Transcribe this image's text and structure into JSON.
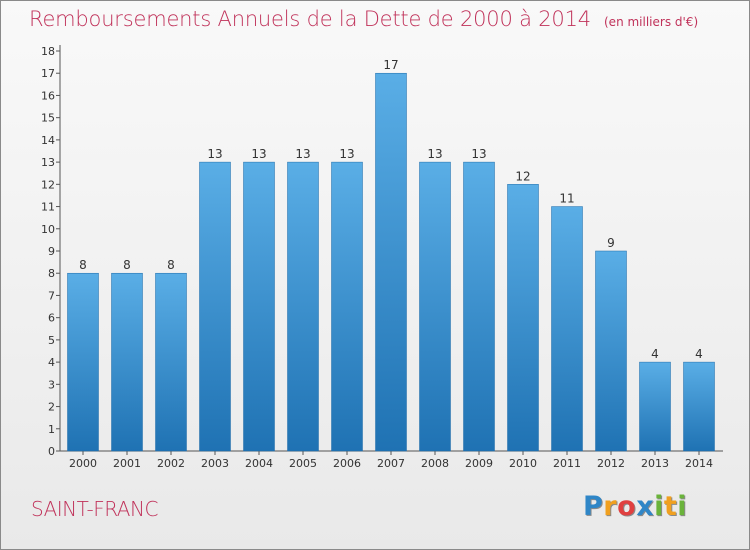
{
  "title": "Remboursements Annuels de la Dette de 2000 à 2014",
  "subtitle": "(en milliers d'€)",
  "commune": "SAINT-FRANC",
  "logo": {
    "letters": [
      "P",
      "r",
      "o",
      "x",
      "i",
      "t",
      "i"
    ],
    "colors": [
      "#2f86c7",
      "#f0a020",
      "#e04040",
      "#2f86c7",
      "#6ab33a",
      "#f0a020",
      "#6ab33a"
    ]
  },
  "colors": {
    "accent": "#c0325a",
    "bar_light": "#5aaee6",
    "bar_dark": "#1f72b3",
    "text": "#333333"
  },
  "chart_data": {
    "type": "bar",
    "title": "Remboursements Annuels de la Dette de 2000 à 2014",
    "subtitle": "(en milliers d'€)",
    "categories": [
      "2000",
      "2001",
      "2002",
      "2003",
      "2004",
      "2005",
      "2006",
      "2007",
      "2008",
      "2009",
      "2010",
      "2011",
      "2012",
      "2013",
      "2014"
    ],
    "values": [
      8,
      8,
      8,
      13,
      13,
      13,
      13,
      17,
      13,
      13,
      12,
      11,
      9,
      4,
      4
    ],
    "data_labels": [
      "8",
      "8",
      "8",
      "13",
      "13",
      "13",
      "13",
      "17",
      "13",
      "13",
      "12",
      "11",
      "9",
      "4",
      "4"
    ],
    "yticks": [
      "0",
      "1",
      "2",
      "3",
      "4",
      "5",
      "6",
      "7",
      "8",
      "9",
      "10",
      "11",
      "12",
      "13",
      "14",
      "15",
      "16",
      "17",
      "18"
    ],
    "ylim": [
      0,
      18
    ],
    "grid": false,
    "legend": "none"
  }
}
